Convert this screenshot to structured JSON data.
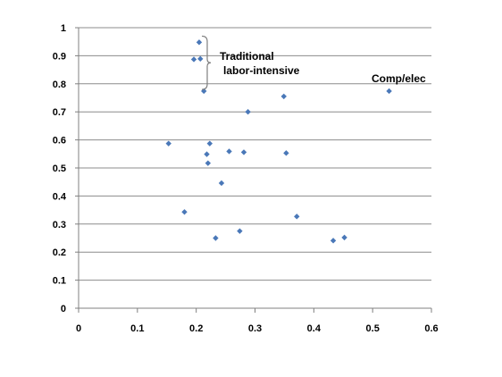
{
  "chart_data": {
    "type": "scatter",
    "title": "",
    "xlabel": "",
    "ylabel": "",
    "xlim": [
      0,
      0.6
    ],
    "ylim": [
      0,
      1
    ],
    "x_ticks": [
      "0",
      "0.1",
      "0.2",
      "0.3",
      "0.4",
      "0.5",
      "0.6"
    ],
    "y_ticks": [
      "0",
      "0.1",
      "0.2",
      "0.3",
      "0.4",
      "0.5",
      "0.6",
      "0.7",
      "0.8",
      "0.9",
      "1"
    ],
    "grid": "horizontal",
    "legend": "none",
    "marker": "diamond",
    "marker_color": "#4a78b8",
    "points": [
      {
        "x": 0.205,
        "y": 0.948
      },
      {
        "x": 0.196,
        "y": 0.887
      },
      {
        "x": 0.207,
        "y": 0.889
      },
      {
        "x": 0.213,
        "y": 0.774
      },
      {
        "x": 0.528,
        "y": 0.774
      },
      {
        "x": 0.349,
        "y": 0.755
      },
      {
        "x": 0.288,
        "y": 0.7
      },
      {
        "x": 0.153,
        "y": 0.587
      },
      {
        "x": 0.223,
        "y": 0.587
      },
      {
        "x": 0.256,
        "y": 0.559
      },
      {
        "x": 0.281,
        "y": 0.556
      },
      {
        "x": 0.353,
        "y": 0.553
      },
      {
        "x": 0.218,
        "y": 0.549
      },
      {
        "x": 0.22,
        "y": 0.517
      },
      {
        "x": 0.243,
        "y": 0.446
      },
      {
        "x": 0.18,
        "y": 0.343
      },
      {
        "x": 0.371,
        "y": 0.327
      },
      {
        "x": 0.274,
        "y": 0.275
      },
      {
        "x": 0.233,
        "y": 0.25
      },
      {
        "x": 0.452,
        "y": 0.252
      },
      {
        "x": 0.433,
        "y": 0.241
      }
    ],
    "annotations": [
      {
        "lines": [
          "Traditional",
          "labor-intensive"
        ],
        "anchor_x": 0.22,
        "anchor_y": 0.86,
        "bracket_y": [
          0.78,
          0.97
        ]
      },
      {
        "lines": [
          "Comp/elec"
        ],
        "anchor_x": 0.528,
        "anchor_y": 0.81
      }
    ]
  }
}
